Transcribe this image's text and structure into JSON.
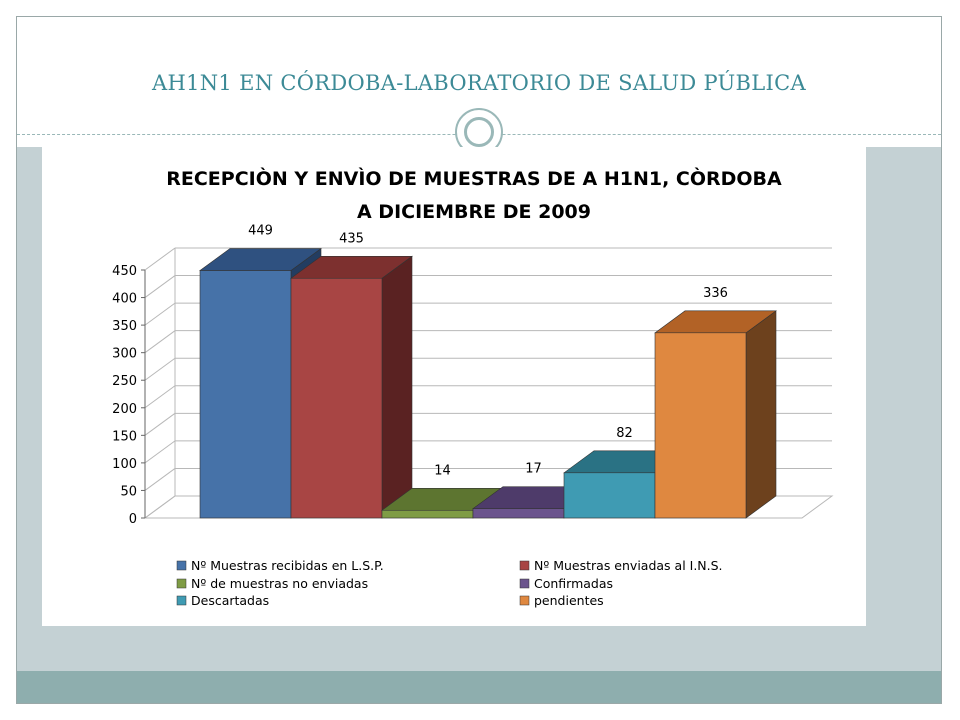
{
  "slide": {
    "title": "AH1N1 EN CÓRDOBA-LABORATORIO DE SALUD PÚBLICA"
  },
  "colors": {
    "title_text": "#3c8a96",
    "body_band": "#c4d1d4",
    "footer_band": "#8eaeae"
  },
  "chart_data": {
    "type": "bar",
    "title_lines": [
      "RECEPCIÒN Y ENVÌO DE MUESTRAS DE A H1N1, CÒRDOBA",
      "A  DICIEMBRE DE 2009"
    ],
    "categories": [
      "Nº Muestras recibidas en L.S.P.",
      "Nº Muestras enviadas al I.N.S.",
      "Nº de muestras no enviadas",
      "Confirmadas",
      "Descartadas",
      "pendientes"
    ],
    "values": [
      449,
      435,
      14,
      17,
      82,
      336
    ],
    "value_labels": [
      "449",
      "435",
      "14",
      "17",
      "82",
      "336"
    ],
    "colors": [
      "#4672a8",
      "#a84544",
      "#7f9c45",
      "#6b548d",
      "#3f9bb3",
      "#df8840"
    ],
    "top_colors": [
      "#2f5180",
      "#7d302f",
      "#5d7530",
      "#4e3b6a",
      "#2a7284",
      "#b26226"
    ],
    "side_colors": [
      "#233d61",
      "#5a2222",
      "#45581f",
      "#38294e",
      "#1d5562",
      "#6d411d"
    ],
    "ylim": [
      0,
      450
    ],
    "yticks": [
      "0",
      "50",
      "100",
      "150",
      "200",
      "250",
      "300",
      "350",
      "400",
      "450"
    ],
    "grid": true,
    "style": "3d",
    "legend_position": "bottom"
  }
}
